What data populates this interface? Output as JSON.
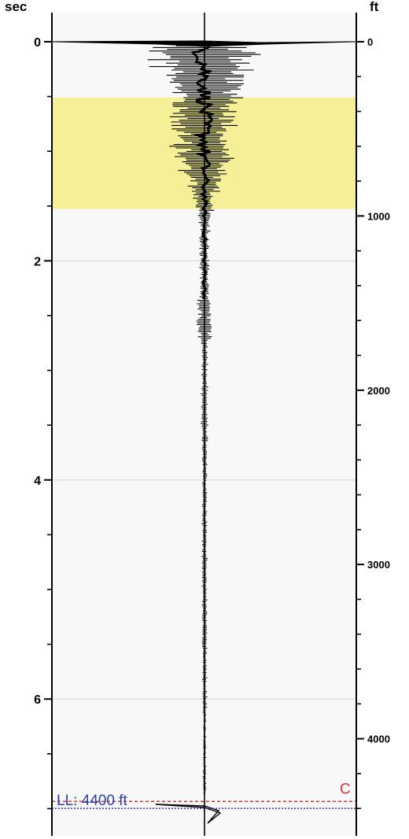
{
  "chart_data": {
    "type": "line",
    "title": "",
    "left_axis": {
      "unit_label": "sec",
      "range": [
        0,
        7.2
      ],
      "major_ticks": [
        0,
        2,
        4,
        6
      ],
      "major_tick_labels": [
        "0",
        "2",
        "4",
        "6"
      ],
      "minor_step": 0.5,
      "gridlines": [
        2,
        4,
        6
      ],
      "inverted": true
    },
    "right_axis": {
      "unit_label": "ft",
      "range": [
        0,
        4550
      ],
      "major_ticks": [
        0,
        1000,
        2000,
        3000,
        4000
      ],
      "major_tick_labels": [
        "0",
        "1000",
        "2000",
        "3000",
        "4000"
      ],
      "minor_step": 200,
      "inverted": true
    },
    "highlight_band": {
      "from_ft": 320,
      "to_ft": 960,
      "color": "#f5f097"
    },
    "annotations": [
      {
        "text": "LL: 4400 ft",
        "depth_ft": 4400,
        "color": "#2b3fa8",
        "line_style": "dotted"
      },
      {
        "text": "C",
        "depth_ft": 4360,
        "color": "#e0323a",
        "line_style": "dashed"
      }
    ],
    "colors": {
      "plot_background": "#f8f8f8",
      "gridline": "#dcdcdc",
      "trace": "#000000"
    },
    "legend": "none"
  }
}
